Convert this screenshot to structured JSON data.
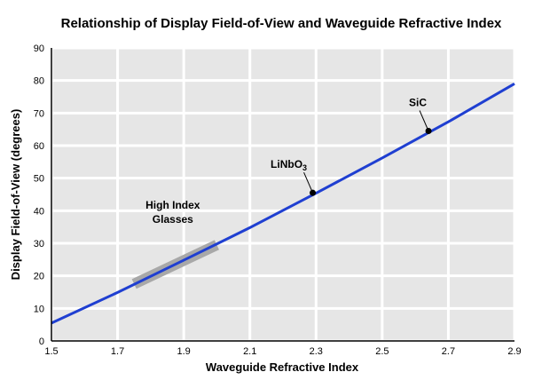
{
  "chart_data": {
    "type": "line",
    "title": "Relationship of Display Field-of-View and Waveguide Refractive Index",
    "xlabel": "Waveguide Refractive Index",
    "ylabel": "Display Field-of-View (degrees)",
    "xlim": [
      1.5,
      2.9
    ],
    "ylim": [
      0,
      90
    ],
    "xticks": [
      1.5,
      1.7,
      1.9,
      2.1,
      2.3,
      2.5,
      2.7,
      2.9
    ],
    "xtick_labels": [
      "1.5",
      "1.7",
      "1.9",
      "2.1",
      "2.3",
      "2.5",
      "2.7",
      "2.9"
    ],
    "yticks": [
      0,
      10,
      20,
      30,
      40,
      50,
      60,
      70,
      80,
      90
    ],
    "ytick_labels": [
      "0",
      "10",
      "20",
      "30",
      "40",
      "50",
      "60",
      "70",
      "80",
      "90"
    ],
    "grid": true,
    "background_color": "#e6e6e6",
    "grid_color": "#ffffff",
    "series": [
      {
        "color": "#1f3fd1",
        "x": [
          1.5,
          1.7,
          1.9,
          2.1,
          2.3,
          2.5,
          2.7,
          2.9
        ],
        "y": [
          5.5,
          14.9,
          24.8,
          34.8,
          45.4,
          56.2,
          67.3,
          79.0
        ]
      }
    ],
    "highlight_band": {
      "label_line1": "High Index",
      "label_line2": "Glasses",
      "x": [
        1.75,
        2.0
      ],
      "y": [
        17.5,
        29.5
      ],
      "color": "#a8a8a8"
    },
    "annotations": [
      {
        "label": "LiNbO",
        "subscript": "3",
        "x": 2.29,
        "y": 45.5
      },
      {
        "label": "SiC",
        "subscript": "",
        "x": 2.64,
        "y": 64.5
      }
    ]
  }
}
